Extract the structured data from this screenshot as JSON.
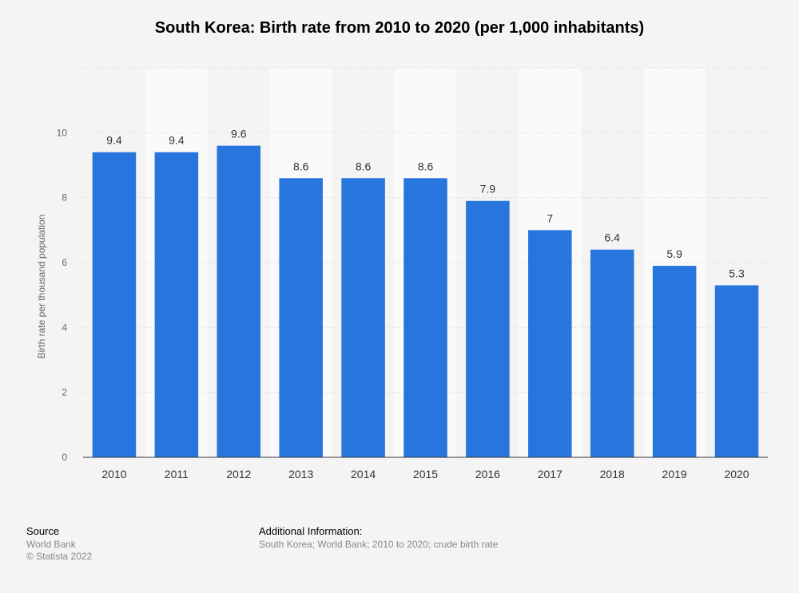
{
  "chart_data": {
    "type": "bar",
    "title": "South Korea: Birth rate from 2010 to 2020 (per 1,000 inhabitants)",
    "xlabel": "",
    "ylabel": "Birth rate per thousand population",
    "categories": [
      "2010",
      "2011",
      "2012",
      "2013",
      "2014",
      "2015",
      "2016",
      "2017",
      "2018",
      "2019",
      "2020"
    ],
    "values": [
      9.4,
      9.4,
      9.6,
      8.6,
      8.6,
      8.6,
      7.9,
      7,
      6.4,
      5.9,
      5.3
    ],
    "data_labels": [
      "9.4",
      "9.4",
      "9.6",
      "8.6",
      "8.6",
      "8.6",
      "7.9",
      "7",
      "6.4",
      "5.9",
      "5.3"
    ],
    "ylim": [
      0,
      12
    ],
    "yticks": [
      0,
      2,
      4,
      6,
      8,
      10
    ],
    "ytick_labels": [
      "0",
      "2",
      "4",
      "6",
      "8",
      "10"
    ],
    "grid": true,
    "bar_color": "#2876dd"
  },
  "footer": {
    "source_heading": "Source",
    "source_lines": [
      "World Bank",
      "© Statista 2022"
    ],
    "info_heading": "Additional Information:",
    "info_lines": [
      "South Korea; World Bank; 2010 to 2020; crude birth rate"
    ]
  }
}
